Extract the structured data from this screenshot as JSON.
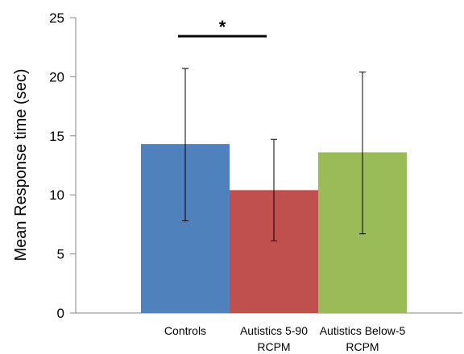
{
  "chart_data": {
    "type": "bar",
    "title": "",
    "xlabel": "",
    "ylabel": "Mean Response time (sec)",
    "ylim": [
      0,
      25
    ],
    "yticks": [
      0,
      5,
      10,
      15,
      20,
      25
    ],
    "grid": false,
    "legend": "none",
    "categories": [
      [
        "Controls"
      ],
      [
        "Autistics 5-90",
        "RCPM"
      ],
      [
        "Autistics Below-5",
        "RCPM"
      ]
    ],
    "values": [
      14.3,
      10.4,
      13.6
    ],
    "error_low": [
      7.8,
      6.1,
      6.7
    ],
    "error_high": [
      20.7,
      14.7,
      20.4
    ],
    "colors": [
      "#4f81bd",
      "#c0504d",
      "#9bbb59"
    ],
    "significance": {
      "label": "*",
      "between": [
        0,
        1
      ],
      "y": 23.5
    }
  }
}
